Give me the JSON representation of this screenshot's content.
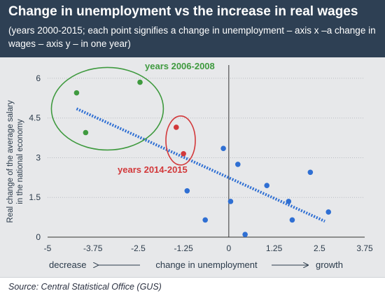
{
  "chart_data": {
    "type": "scatter",
    "title": "Change in unemployment vs the increase in real wages",
    "subtitle": "(years 2000-2015; each point signifies a change in unemployment – axis x –a change in wages – axis y – in one year)",
    "ylabel_line1": "Real change of the average salary",
    "ylabel_line2": "in the national economy",
    "xlabel": "change in unemployment",
    "x_left_label": "decrease",
    "x_right_label": "growth",
    "xlim": [
      -5,
      3.75
    ],
    "ylim": [
      0,
      6.5
    ],
    "x_ticks": [
      -5,
      -3.75,
      -2.5,
      -1.25,
      0,
      1.25,
      2.5,
      3.75
    ],
    "x_tick_labels": [
      "-5",
      "-3.75",
      "-2.5",
      "-1.25",
      "0",
      "1.25",
      "2.5",
      "3.75"
    ],
    "y_ticks": [
      0,
      1.5,
      3,
      4.5,
      6
    ],
    "y_tick_labels": [
      "0",
      "1.5",
      "3",
      "4.5",
      "6"
    ],
    "grid_y": true,
    "series": [
      {
        "group": "years 2006-2008",
        "color": "#3f9a3f",
        "points": [
          {
            "x": -4.2,
            "y": 5.45
          },
          {
            "x": -2.45,
            "y": 5.85
          },
          {
            "x": -3.95,
            "y": 3.95
          }
        ]
      },
      {
        "group": "years 2014-2015",
        "color": "#d2383a",
        "points": [
          {
            "x": -1.45,
            "y": 4.15
          },
          {
            "x": -1.25,
            "y": 3.15
          }
        ]
      },
      {
        "group": "other years",
        "color": "#2f6fd3",
        "points": [
          {
            "x": -1.15,
            "y": 1.75
          },
          {
            "x": -0.65,
            "y": 0.65
          },
          {
            "x": -0.15,
            "y": 3.35
          },
          {
            "x": 0.05,
            "y": 1.35
          },
          {
            "x": 0.25,
            "y": 2.75
          },
          {
            "x": 0.45,
            "y": 0.1
          },
          {
            "x": 1.05,
            "y": 1.95
          },
          {
            "x": 1.65,
            "y": 1.35
          },
          {
            "x": 1.75,
            "y": 0.65
          },
          {
            "x": 2.25,
            "y": 2.45
          },
          {
            "x": 2.75,
            "y": 0.95
          }
        ]
      }
    ],
    "trendline": {
      "x": [
        -4.2,
        2.65
      ],
      "y": [
        4.85,
        0.6
      ],
      "color": "#2f6fd3"
    },
    "annotations": [
      {
        "text": "years 2006-2008",
        "color": "#3f9a3f"
      },
      {
        "text": "years 2014-2015",
        "color": "#d2383a"
      }
    ]
  },
  "footer": {
    "source": "Source: Central Statistical Office (GUS)"
  },
  "colors": {
    "header_bg": "#2e4054",
    "background": "#e7e8ea"
  }
}
